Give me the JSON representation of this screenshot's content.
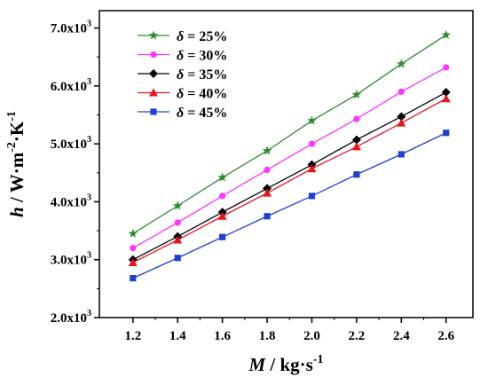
{
  "chart_data": {
    "type": "line",
    "x": [
      1.2,
      1.4,
      1.6,
      1.8,
      2.0,
      2.2,
      2.4,
      2.6
    ],
    "x_tick_labels": [
      "1.2",
      "1.4",
      "1.6",
      "1.8",
      "2.0",
      "2.2",
      "2.4",
      "2.6"
    ],
    "xlim": [
      1.05,
      2.72
    ],
    "ylim": [
      2000,
      7300
    ],
    "y_ticks": [
      2000,
      3000,
      4000,
      5000,
      6000,
      7000
    ],
    "y_tick_labels": [
      {
        "mantissa": "2.0x10",
        "exp": "3"
      },
      {
        "mantissa": "3.0x10",
        "exp": "3"
      },
      {
        "mantissa": "4.0x10",
        "exp": "3"
      },
      {
        "mantissa": "5.0x10",
        "exp": "3"
      },
      {
        "mantissa": "6.0x10",
        "exp": "3"
      },
      {
        "mantissa": "7.0x10",
        "exp": "3"
      }
    ],
    "xlabel": {
      "var": "M",
      "rest": " / kg·s",
      "exp": "-1"
    },
    "ylabel": {
      "var": "h",
      "rest": " / W·m",
      "exp1": "-2",
      "mid": "·K",
      "exp2": "-1"
    },
    "legend_position": "top-left",
    "grid": false,
    "series": [
      {
        "name": "δ = 25%",
        "symbol": "δ",
        "label": " = 25%",
        "color": "#2e8b2e",
        "marker": "star",
        "values": [
          3450,
          3930,
          4420,
          4880,
          5400,
          5850,
          6380,
          6880
        ]
      },
      {
        "name": "δ = 30%",
        "symbol": "δ",
        "label": " = 30%",
        "color": "#ff33ff",
        "marker": "circle",
        "values": [
          3200,
          3640,
          4100,
          4550,
          5000,
          5430,
          5900,
          6320
        ]
      },
      {
        "name": "δ = 35%",
        "symbol": "δ",
        "label": " = 35%",
        "color": "#000000",
        "marker": "diamond",
        "values": [
          3000,
          3400,
          3820,
          4230,
          4640,
          5070,
          5470,
          5890
        ]
      },
      {
        "name": "δ = 40%",
        "symbol": "δ",
        "label": " = 40%",
        "color": "#e8141c",
        "marker": "triangle",
        "values": [
          2950,
          3340,
          3750,
          4150,
          4570,
          4950,
          5360,
          5780
        ]
      },
      {
        "name": "δ = 45%",
        "symbol": "δ",
        "label": " = 45%",
        "color": "#1f3fd6",
        "marker": "square",
        "values": [
          2680,
          3030,
          3390,
          3750,
          4100,
          4470,
          4820,
          5190
        ]
      }
    ]
  }
}
